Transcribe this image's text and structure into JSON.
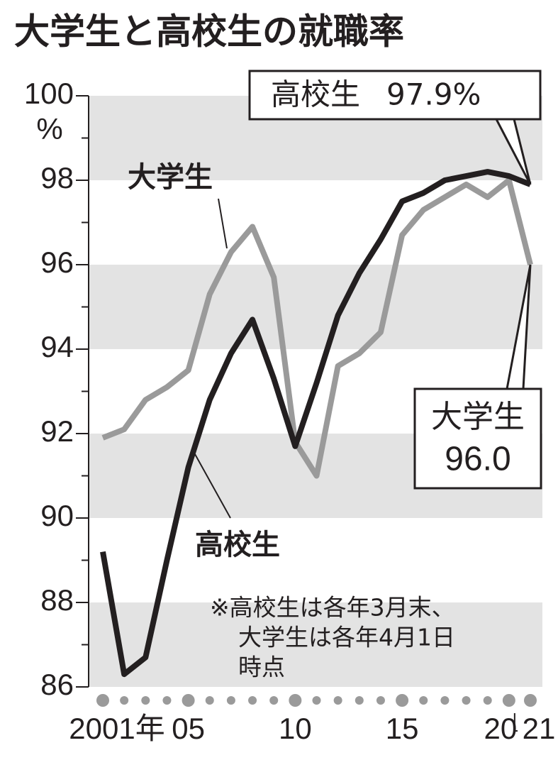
{
  "chart_data": {
    "type": "line",
    "title": "大学生と高校生の就職率",
    "y_unit": "%",
    "categories": [
      "2001年",
      null,
      null,
      null,
      "05",
      null,
      null,
      null,
      null,
      "10",
      null,
      null,
      null,
      null,
      "15",
      null,
      null,
      null,
      null,
      "20",
      "21"
    ],
    "series": [
      {
        "name": "大学生",
        "color": "#9a9a9a",
        "values": [
          91.9,
          92.1,
          92.8,
          93.1,
          93.5,
          95.3,
          96.3,
          96.9,
          95.7,
          91.8,
          91.0,
          93.6,
          93.9,
          94.4,
          96.7,
          97.3,
          97.6,
          97.9,
          97.6,
          98.0,
          96.0
        ],
        "value_labels": [
          null,
          null,
          null,
          null,
          null,
          null,
          null,
          null,
          null,
          null,
          null,
          null,
          null,
          null,
          null,
          null,
          null,
          null,
          null,
          null,
          "96.0"
        ]
      },
      {
        "name": "高校生",
        "color": "#231f20",
        "values": [
          89.2,
          86.3,
          86.7,
          89.0,
          91.2,
          92.8,
          93.9,
          94.7,
          93.3,
          91.7,
          93.2,
          94.8,
          95.8,
          96.6,
          97.5,
          97.7,
          98.0,
          98.1,
          98.2,
          98.1,
          97.9
        ],
        "value_labels": [
          null,
          null,
          null,
          null,
          null,
          null,
          null,
          null,
          null,
          null,
          null,
          null,
          null,
          null,
          null,
          null,
          null,
          null,
          null,
          null,
          "97.9%"
        ]
      }
    ],
    "ylim": [
      86,
      100
    ],
    "yticks": [
      86,
      88,
      90,
      92,
      94,
      96,
      98,
      100
    ],
    "minor_yticks": [
      87,
      89,
      91,
      93,
      95,
      97,
      99
    ],
    "bands": true,
    "note": [
      "※高校生は各年3月末、",
      "大学生は各年4月1日",
      "時点"
    ]
  }
}
